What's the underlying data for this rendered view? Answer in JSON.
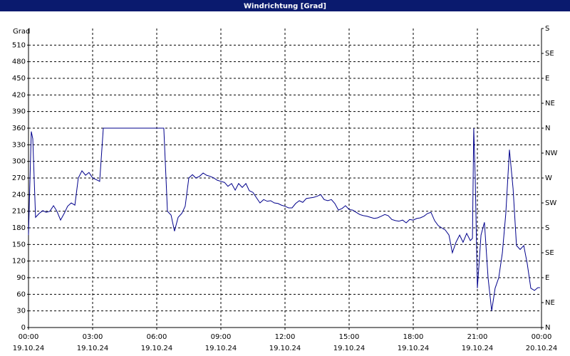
{
  "chart_data": {
    "type": "line",
    "title": "Windrichtung [Grad]",
    "y_label": "Grad",
    "xlim": [
      0,
      24
    ],
    "xticks": [
      {
        "value": 0,
        "label": "00:00",
        "date": "19.10.24"
      },
      {
        "value": 3,
        "label": "03:00",
        "date": "19.10.24"
      },
      {
        "value": 6,
        "label": "06:00",
        "date": "19.10.24"
      },
      {
        "value": 9,
        "label": "09:00",
        "date": "19.10.24"
      },
      {
        "value": 12,
        "label": "12:00",
        "date": "19.10.24"
      },
      {
        "value": 15,
        "label": "15:00",
        "date": "19.10.24"
      },
      {
        "value": 18,
        "label": "18:00",
        "date": "19.10.24"
      },
      {
        "value": 21,
        "label": "21:00",
        "date": "19.10.24"
      },
      {
        "value": 24,
        "label": "00:00",
        "date": "20.10.24"
      }
    ],
    "ylim": [
      0,
      540
    ],
    "yticks": [
      0,
      30,
      60,
      90,
      120,
      150,
      180,
      210,
      240,
      270,
      300,
      330,
      360,
      390,
      420,
      450,
      480,
      510
    ],
    "y2lim": [
      0,
      540
    ],
    "y2ticks": [
      {
        "value": 0,
        "label": "N"
      },
      {
        "value": 45,
        "label": "NE"
      },
      {
        "value": 90,
        "label": "E"
      },
      {
        "value": 135,
        "label": "SE"
      },
      {
        "value": 180,
        "label": "S"
      },
      {
        "value": 225,
        "label": "SW"
      },
      {
        "value": 270,
        "label": "W"
      },
      {
        "value": 315,
        "label": "NW"
      },
      {
        "value": 360,
        "label": "N"
      },
      {
        "value": 405,
        "label": "NE"
      },
      {
        "value": 450,
        "label": "E"
      },
      {
        "value": 495,
        "label": "SE"
      },
      {
        "value": 540,
        "label": "S"
      }
    ],
    "grid": true,
    "x": [
      0,
      0.13,
      0.2,
      0.33,
      0.5,
      0.67,
      0.83,
      1.0,
      1.17,
      1.33,
      1.5,
      1.67,
      1.83,
      2.0,
      2.17,
      2.33,
      2.5,
      2.67,
      2.83,
      3.0,
      3.17,
      3.33,
      3.5,
      6.33,
      6.5,
      6.67,
      6.83,
      7.0,
      7.17,
      7.33,
      7.5,
      7.67,
      7.83,
      8.0,
      8.17,
      8.33,
      8.5,
      8.67,
      8.83,
      9.0,
      9.17,
      9.33,
      9.5,
      9.67,
      9.83,
      10.0,
      10.17,
      10.33,
      10.5,
      10.67,
      10.83,
      11.0,
      11.17,
      11.33,
      11.5,
      11.67,
      11.83,
      12.0,
      12.17,
      12.33,
      12.5,
      12.67,
      12.83,
      13.0,
      13.17,
      13.33,
      13.5,
      13.67,
      13.83,
      14.0,
      14.17,
      14.33,
      14.5,
      14.67,
      14.83,
      15.0,
      15.17,
      15.33,
      15.5,
      15.67,
      15.83,
      16.0,
      16.17,
      16.33,
      16.5,
      16.67,
      16.83,
      17.0,
      17.17,
      17.33,
      17.5,
      17.67,
      17.83,
      18.0,
      18.17,
      18.33,
      18.5,
      18.67,
      18.83,
      19.0,
      19.17,
      19.33,
      19.5,
      19.67,
      19.83,
      20.0,
      20.17,
      20.33,
      20.5,
      20.67,
      20.77,
      20.83,
      20.9,
      21.0,
      21.17,
      21.33,
      21.5,
      21.67,
      21.83,
      22.0,
      22.17,
      22.33,
      22.5,
      22.67,
      22.83,
      23.0,
      23.17,
      23.33,
      23.5,
      23.67,
      23.83,
      23.93
    ],
    "series": [
      {
        "name": "Windrichtung",
        "color": "#00008b",
        "values": [
          167,
          354,
          341,
          199,
          206,
          211,
          208,
          210,
          220,
          210,
          194,
          206,
          219,
          225,
          221,
          270,
          283,
          275,
          280,
          270,
          267,
          264,
          360,
          360,
          210,
          203,
          174,
          199,
          206,
          219,
          270,
          276,
          270,
          273,
          279,
          275,
          273,
          270,
          266,
          264,
          262,
          255,
          260,
          248,
          260,
          253,
          260,
          247,
          244,
          234,
          225,
          231,
          228,
          229,
          225,
          224,
          221,
          219,
          216,
          216,
          224,
          229,
          226,
          233,
          234,
          235,
          237,
          240,
          231,
          229,
          231,
          224,
          212,
          215,
          220,
          213,
          212,
          208,
          204,
          202,
          201,
          199,
          197,
          198,
          201,
          204,
          202,
          195,
          193,
          192,
          194,
          189,
          195,
          194,
          197,
          198,
          201,
          206,
          208,
          193,
          184,
          180,
          176,
          167,
          135,
          154,
          167,
          154,
          170,
          157,
          161,
          360,
          270,
          71,
          167,
          190,
          90,
          30,
          71,
          90,
          135,
          206,
          321,
          251,
          148,
          141,
          148,
          116,
          71,
          67,
          72,
          72
        ]
      }
    ]
  }
}
